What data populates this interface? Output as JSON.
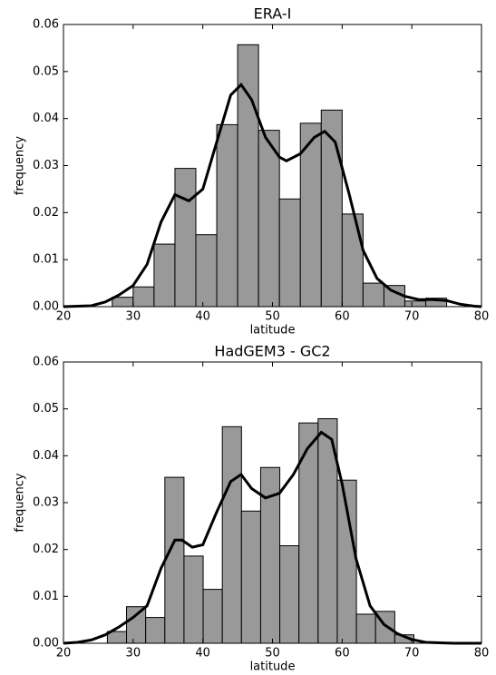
{
  "chart_data": [
    {
      "type": "histogram",
      "title": "ERA-I",
      "xlabel": "latitude",
      "ylabel": "frequency",
      "color": "#999999",
      "bins": [
        27,
        30,
        33,
        36,
        39,
        42,
        45,
        48,
        51,
        54,
        57,
        60,
        63,
        66,
        69,
        72,
        75
      ],
      "counts": [
        0.002,
        0.0042,
        0.0133,
        0.0294,
        0.0153,
        0.0387,
        0.0557,
        0.0375,
        0.0229,
        0.039,
        0.0418,
        0.0197,
        0.005,
        0.0045,
        0.0012,
        0.0018
      ],
      "line": {
        "color": "#000000",
        "x": [
          20,
          24,
          26,
          28,
          30,
          32,
          34,
          36,
          38,
          40,
          42,
          44,
          45.5,
          47,
          49,
          51,
          52,
          54,
          56,
          57.5,
          59,
          61,
          63,
          65,
          67,
          69,
          71,
          73,
          75,
          77,
          79,
          80
        ],
        "values": [
          0,
          0.0002,
          0.001,
          0.0025,
          0.0045,
          0.009,
          0.018,
          0.0238,
          0.0225,
          0.025,
          0.035,
          0.045,
          0.0472,
          0.044,
          0.036,
          0.0318,
          0.031,
          0.0325,
          0.036,
          0.0373,
          0.035,
          0.024,
          0.012,
          0.006,
          0.0035,
          0.0022,
          0.0015,
          0.0015,
          0.0013,
          0.0005,
          0.0001,
          0
        ]
      },
      "xlim": [
        20,
        80
      ],
      "ylim": [
        0,
        0.06
      ],
      "xticks": [
        20,
        30,
        40,
        50,
        60,
        70,
        80
      ],
      "yticks": [
        {
          "value": 0,
          "label": "0.00"
        },
        0.01,
        0.02,
        0.03,
        0.04,
        0.05,
        0.06
      ]
    },
    {
      "type": "histogram",
      "title": "HadGEM3 - GC2",
      "xlabel": "latitude",
      "ylabel": "frequency",
      "color": "#999999",
      "bins": [
        26.3,
        29.05,
        31.8,
        34.55,
        37.3,
        40.05,
        42.8,
        45.55,
        48.3,
        51.05,
        53.8,
        56.55,
        59.3,
        62.05,
        64.8,
        67.55,
        70.3
      ],
      "counts": [
        0.0025,
        0.0078,
        0.0055,
        0.0354,
        0.0186,
        0.0115,
        0.0462,
        0.0282,
        0.0375,
        0.0208,
        0.047,
        0.0479,
        0.0348,
        0.0062,
        0.0068,
        0.0018
      ],
      "line": {
        "color": "#000000",
        "x": [
          20,
          22,
          24,
          26,
          28,
          30,
          32,
          34,
          36,
          37,
          38.5,
          40,
          42,
          44,
          45.5,
          47,
          49,
          51,
          53,
          55,
          57,
          58.5,
          60,
          62,
          64,
          66,
          68,
          70,
          72,
          74,
          76,
          80
        ],
        "values": [
          0,
          0.0002,
          0.0007,
          0.0018,
          0.0035,
          0.0055,
          0.008,
          0.016,
          0.022,
          0.022,
          0.0205,
          0.021,
          0.028,
          0.0345,
          0.036,
          0.033,
          0.031,
          0.032,
          0.036,
          0.0415,
          0.045,
          0.0435,
          0.034,
          0.018,
          0.008,
          0.004,
          0.002,
          0.0008,
          0.0002,
          0.0001,
          0,
          0
        ]
      },
      "xlim": [
        20,
        80
      ],
      "ylim": [
        0,
        0.06
      ],
      "xticks": [
        20,
        30,
        40,
        50,
        60,
        70,
        80
      ],
      "yticks": [
        {
          "value": 0,
          "label": "0.00"
        },
        0.01,
        0.02,
        0.03,
        0.04,
        0.05,
        0.06
      ]
    }
  ]
}
